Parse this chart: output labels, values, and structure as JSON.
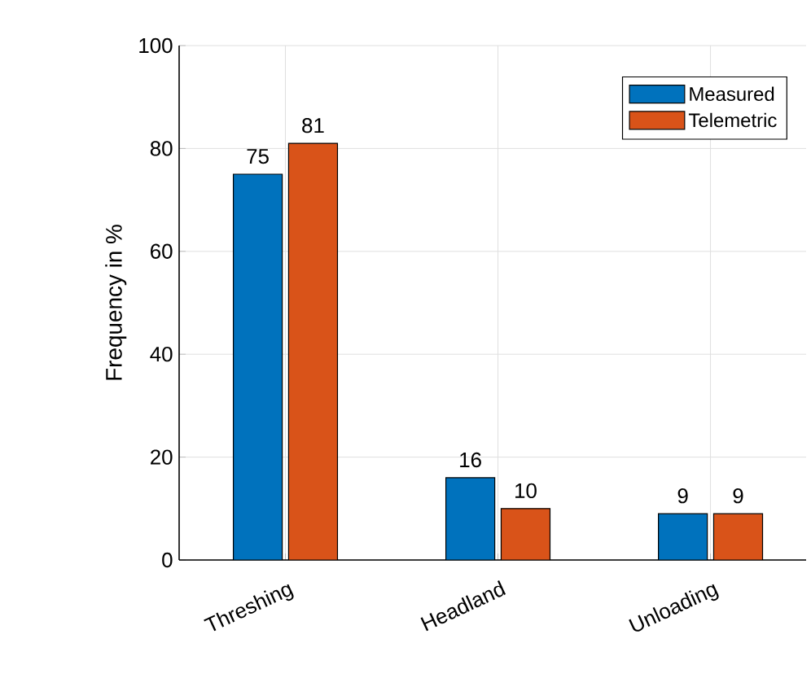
{
  "chart_data": {
    "type": "bar",
    "ylabel": "Frequency in %",
    "categories": [
      "Threshing",
      "Headland",
      "Unloading"
    ],
    "series": [
      {
        "name": "Measured",
        "color": "#0072bd",
        "values": [
          75,
          16,
          9
        ]
      },
      {
        "name": "Telemetric",
        "color": "#d95319",
        "values": [
          81,
          10,
          9
        ]
      }
    ],
    "ylim": [
      0,
      100
    ],
    "yticks": [
      0,
      20,
      40,
      60,
      80,
      100
    ],
    "grid": true,
    "legend": "top right",
    "data_labels": true
  }
}
